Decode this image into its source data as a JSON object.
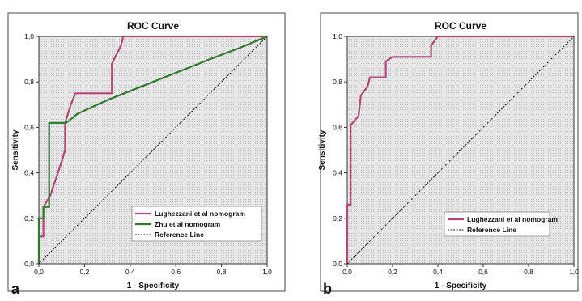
{
  "chart_data": [
    {
      "panel_label": "a",
      "type": "line",
      "title": "ROC Curve",
      "xlabel": "1 - Specificity",
      "ylabel": "Sensitivity",
      "xlim": [
        0,
        1
      ],
      "ylim": [
        0,
        1
      ],
      "x_ticks": [
        "0,0",
        "0,2",
        "0,4",
        "0,6",
        "0,8",
        "1,0"
      ],
      "y_ticks": [
        "0,0",
        "0,2",
        "0,4",
        "0,6",
        "0,8",
        "1,0"
      ],
      "grid": false,
      "legend_position": "bottom-right",
      "series": [
        {
          "name": "Lughezzani et al nomogram",
          "color": "#b5467a",
          "style": "solid",
          "points": [
            [
              0,
              0
            ],
            [
              0,
              0.12
            ],
            [
              0.02,
              0.12
            ],
            [
              0.02,
              0.25
            ],
            [
              0.05,
              0.3
            ],
            [
              0.1,
              0.45
            ],
            [
              0.115,
              0.5
            ],
            [
              0.115,
              0.62
            ],
            [
              0.14,
              0.7
            ],
            [
              0.16,
              0.75
            ],
            [
              0.32,
              0.75
            ],
            [
              0.32,
              0.88
            ],
            [
              0.36,
              0.96
            ],
            [
              0.37,
              1.0
            ],
            [
              1.0,
              1.0
            ]
          ]
        },
        {
          "name": "Zhu et al nomogram",
          "color": "#2f7a2f",
          "style": "solid",
          "points": [
            [
              0,
              0
            ],
            [
              0,
              0.2
            ],
            [
              0.02,
              0.2
            ],
            [
              0.02,
              0.25
            ],
            [
              0.045,
              0.25
            ],
            [
              0.045,
              0.62
            ],
            [
              0.12,
              0.62
            ],
            [
              0.17,
              0.66
            ],
            [
              0.3,
              0.72
            ],
            [
              0.45,
              0.78
            ],
            [
              0.6,
              0.84
            ],
            [
              0.75,
              0.9
            ],
            [
              0.88,
              0.95
            ],
            [
              1.0,
              1.0
            ]
          ]
        },
        {
          "name": "Reference Line",
          "color": "#1a1a1a",
          "style": "dashed",
          "points": [
            [
              0,
              0
            ],
            [
              1,
              1
            ]
          ]
        }
      ]
    },
    {
      "panel_label": "b",
      "type": "line",
      "title": "ROC Curve",
      "xlabel": "1 - Specificity",
      "ylabel": "Sensitivity",
      "xlim": [
        0,
        1
      ],
      "ylim": [
        0,
        1
      ],
      "x_ticks": [
        "0,0",
        "0,2",
        "0,4",
        "0,6",
        "0,8",
        "1,0"
      ],
      "y_ticks": [
        "0,0",
        "0,2",
        "0,4",
        "0,6",
        "0,8",
        "1,0"
      ],
      "grid": false,
      "legend_position": "bottom-right",
      "series": [
        {
          "name": "Lughezzani et al nomogram",
          "color": "#b5467a",
          "style": "solid",
          "points": [
            [
              0,
              0
            ],
            [
              0,
              0.26
            ],
            [
              0.015,
              0.26
            ],
            [
              0.015,
              0.61
            ],
            [
              0.05,
              0.65
            ],
            [
              0.06,
              0.74
            ],
            [
              0.09,
              0.78
            ],
            [
              0.1,
              0.82
            ],
            [
              0.14,
              0.82
            ],
            [
              0.17,
              0.82
            ],
            [
              0.17,
              0.89
            ],
            [
              0.2,
              0.91
            ],
            [
              0.37,
              0.91
            ],
            [
              0.37,
              0.96
            ],
            [
              0.4,
              1.0
            ],
            [
              1.0,
              1.0
            ]
          ]
        },
        {
          "name": "Reference Line",
          "color": "#1a1a1a",
          "style": "dashed",
          "points": [
            [
              0,
              0
            ],
            [
              1,
              1
            ]
          ]
        }
      ]
    }
  ]
}
